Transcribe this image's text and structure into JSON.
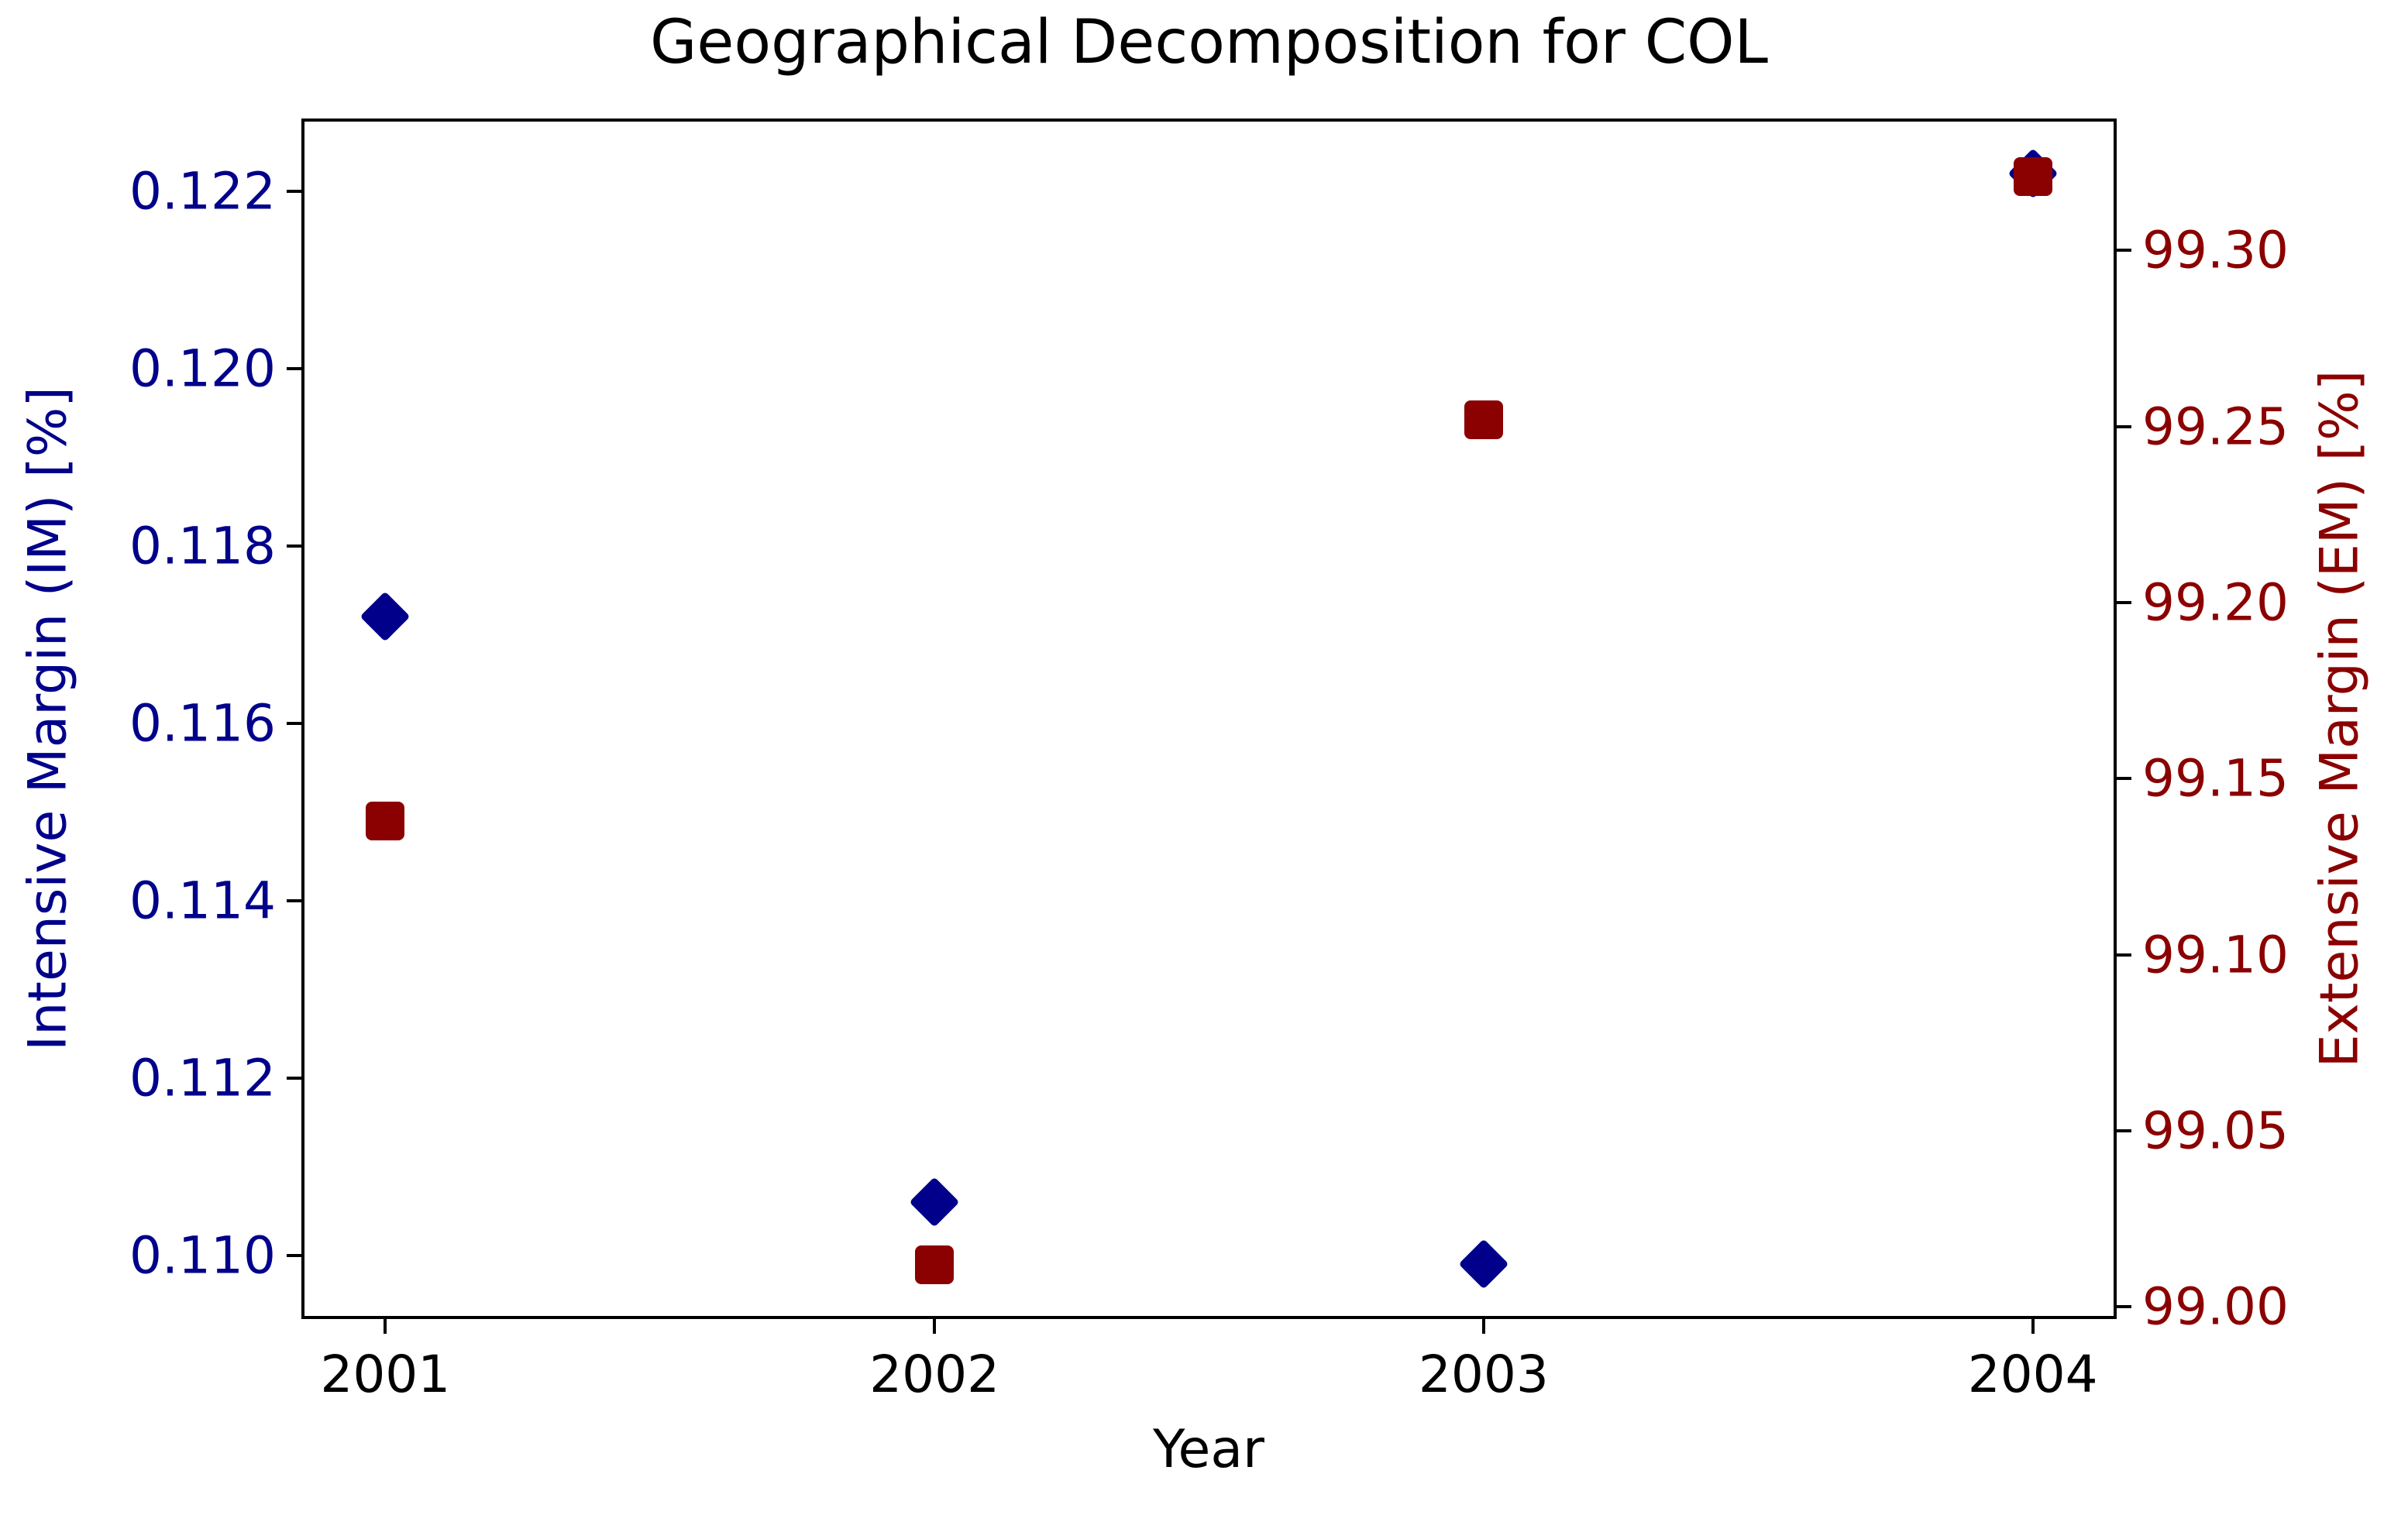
{
  "title": "Geographical Decomposition for COL",
  "axes": {
    "x": {
      "label": "Year",
      "tick_labels": [
        "2001",
        "2002",
        "2003",
        "2004"
      ],
      "tick_values": [
        2001,
        2002,
        2003,
        2004
      ],
      "lim": [
        2000.85,
        2004.15
      ]
    },
    "y_left": {
      "label": "Intensive Margin (IM) [%]",
      "color": "#00008B",
      "tick_labels": [
        "0.122",
        "0.120",
        "0.118",
        "0.116",
        "0.114",
        "0.112",
        "0.110"
      ],
      "tick_values": [
        0.122,
        0.12,
        0.118,
        0.116,
        0.114,
        0.112,
        0.11
      ],
      "lim": [
        0.1093,
        0.1228
      ]
    },
    "y_right": {
      "label": "Extensive Margin (EM) [%]",
      "color": "#8B0000",
      "tick_labels": [
        "99.30",
        "99.25",
        "99.20",
        "99.15",
        "99.10",
        "99.05",
        "99.00"
      ],
      "tick_values": [
        99.3,
        99.25,
        99.2,
        99.15,
        99.1,
        99.05,
        99.0
      ],
      "lim": [
        98.997,
        99.337
      ]
    }
  },
  "chart_data": {
    "type": "scatter",
    "title": "Geographical Decomposition for COL",
    "xlabel": "Year",
    "ylabel_left": "Intensive Margin (IM) [%]",
    "ylabel_right": "Extensive Margin (EM) [%]",
    "x": [
      2001,
      2002,
      2003,
      2004
    ],
    "series": [
      {
        "name": "Intensive Margin (IM) [%]",
        "axis": "left",
        "marker": "diamond",
        "color": "#00008B",
        "values": [
          0.1172,
          0.1106,
          0.1099,
          0.1222
        ]
      },
      {
        "name": "Extensive Margin (EM) [%]",
        "axis": "right",
        "marker": "square",
        "color": "#8B0000",
        "values": [
          99.138,
          99.012,
          99.252,
          99.321
        ]
      }
    ],
    "xlim": [
      2000.85,
      2004.15
    ],
    "ylim_left": [
      0.1093,
      0.1228
    ],
    "ylim_right": [
      98.997,
      99.337
    ],
    "grid": false,
    "legend": false
  }
}
